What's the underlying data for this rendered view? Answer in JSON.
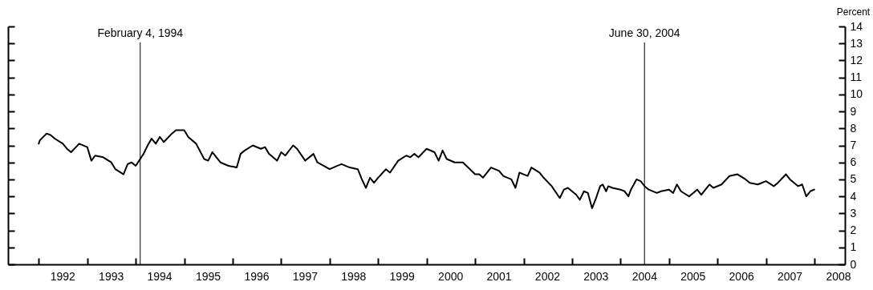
{
  "chart_data": {
    "type": "line",
    "ylabel": "Percent",
    "x": [
      "1992-01-01",
      "1992-01-10",
      "1992-03",
      "1992-04",
      "1992-05",
      "1992-07",
      "1992-08",
      "1992-09",
      "1992-11",
      "1993-01",
      "1993-02",
      "1993-03",
      "1993-05",
      "1993-07",
      "1993-08",
      "1993-10",
      "1993-11",
      "1993-12",
      "1994-01",
      "1994-03",
      "1994-04",
      "1994-05",
      "1994-06",
      "1994-07",
      "1994-08",
      "1994-10",
      "1994-11",
      "1995-01",
      "1995-02",
      "1995-04",
      "1995-06",
      "1995-07",
      "1995-08",
      "1995-09",
      "1995-10",
      "1995-12",
      "1996-02",
      "1996-03",
      "1996-04",
      "1996-06",
      "1996-08",
      "1996-09",
      "1996-10",
      "1996-12",
      "1997-01",
      "1997-02",
      "1997-04",
      "1997-05",
      "1997-07",
      "1997-09",
      "1997-10",
      "1998-01",
      "1998-03",
      "1998-04",
      "1998-06",
      "1998-08",
      "1998-09",
      "1998-10",
      "1998-11",
      "1998-12",
      "1999-01",
      "1999-03",
      "1999-04",
      "1999-06",
      "1999-08",
      "1999-09",
      "1999-10",
      "1999-11",
      "2000-01",
      "2000-03",
      "2000-04",
      "2000-05",
      "2000-06",
      "2000-08",
      "2000-10",
      "2001-01",
      "2001-02",
      "2001-03",
      "2001-05",
      "2001-07",
      "2001-08",
      "2001-10",
      "2001-11",
      "2001-12",
      "2002-01",
      "2002-02",
      "2002-03",
      "2002-05",
      "2002-06",
      "2002-08",
      "2002-10",
      "2002-11",
      "2002-12",
      "2003-01",
      "2003-02",
      "2003-03",
      "2003-04",
      "2003-05",
      "2003-06",
      "2003-07",
      "2003-08-01",
      "2003-08-20",
      "2003-09-15",
      "2003-10",
      "2003-11",
      "2004-01",
      "2004-02",
      "2004-03",
      "2004-03-20",
      "2004-05",
      "2004-06",
      "2004-07",
      "2004-08",
      "2004-10",
      "2004-11",
      "2005-01",
      "2005-02",
      "2005-03",
      "2005-04",
      "2005-06",
      "2005-08",
      "2005-09",
      "2005-11",
      "2005-12",
      "2006-02",
      "2006-04",
      "2006-06",
      "2006-08",
      "2006-09",
      "2006-11",
      "2007-01",
      "2007-03",
      "2007-04",
      "2007-06",
      "2007-07",
      "2007-09",
      "2007-10",
      "2007-11",
      "2007-12",
      "2007-12-31"
    ],
    "series": [
      {
        "color": "#000000",
        "values": [
          7.1,
          7.3,
          7.7,
          7.6,
          7.4,
          7.1,
          6.8,
          6.6,
          7.1,
          6.9,
          6.1,
          6.4,
          6.3,
          6.0,
          5.6,
          5.3,
          5.9,
          6.0,
          5.8,
          6.5,
          7.0,
          7.4,
          7.1,
          7.5,
          7.2,
          7.7,
          7.9,
          7.9,
          7.5,
          7.1,
          6.2,
          6.1,
          6.6,
          6.3,
          6.0,
          5.8,
          5.7,
          6.5,
          6.7,
          7.0,
          6.8,
          6.9,
          6.5,
          6.1,
          6.6,
          6.4,
          7.0,
          6.8,
          6.1,
          6.5,
          6.0,
          5.6,
          5.8,
          5.9,
          5.7,
          5.6,
          5.0,
          4.5,
          5.1,
          4.8,
          5.1,
          5.6,
          5.4,
          6.1,
          6.4,
          6.3,
          6.5,
          6.3,
          6.8,
          6.6,
          6.1,
          6.7,
          6.2,
          6.0,
          6.0,
          5.3,
          5.3,
          5.1,
          5.7,
          5.5,
          5.2,
          5.0,
          4.5,
          5.4,
          5.3,
          5.2,
          5.7,
          5.4,
          5.1,
          4.6,
          3.9,
          4.4,
          4.5,
          4.3,
          4.1,
          3.8,
          4.3,
          4.2,
          3.3,
          3.9,
          4.6,
          4.7,
          4.3,
          4.6,
          4.5,
          4.4,
          4.3,
          4.0,
          4.4,
          5.0,
          4.9,
          4.6,
          4.4,
          4.2,
          4.3,
          4.4,
          4.2,
          4.7,
          4.3,
          4.0,
          4.4,
          4.1,
          4.7,
          4.5,
          4.7,
          5.2,
          5.3,
          5.0,
          4.8,
          4.7,
          4.9,
          4.6,
          4.8,
          5.3,
          5.0,
          4.6,
          4.7,
          4.0,
          4.3,
          4.4
        ]
      }
    ],
    "xlim": [
      "1991-05-15",
      "2008-08-18"
    ],
    "xticks": [
      {
        "value": "1992-01-01",
        "label": null
      },
      {
        "value": "1993-01-01",
        "label": null
      },
      {
        "value": "1994-01-01",
        "label": null
      },
      {
        "value": "1995-01-01",
        "label": null
      },
      {
        "value": "1996-01-01",
        "label": null
      },
      {
        "value": "1997-01-01",
        "label": null
      },
      {
        "value": "1998-01-01",
        "label": null
      },
      {
        "value": "1999-01-01",
        "label": null
      },
      {
        "value": "2000-01-01",
        "label": null
      },
      {
        "value": "2001-01-01",
        "label": null
      },
      {
        "value": "2002-01-01",
        "label": null
      },
      {
        "value": "2003-01-01",
        "label": null
      },
      {
        "value": "2004-01-01",
        "label": null
      },
      {
        "value": "2005-01-01",
        "label": null
      },
      {
        "value": "2006-01-01",
        "label": null
      },
      {
        "value": "2007-01-01",
        "label": null
      },
      {
        "value": "2008-01-01",
        "label": null
      },
      {
        "value": "1992-07-01",
        "label": "1992"
      },
      {
        "value": "1993-07-01",
        "label": "1993"
      },
      {
        "value": "1994-07-01",
        "label": "1994"
      },
      {
        "value": "1995-07-01",
        "label": "1995"
      },
      {
        "value": "1996-07-01",
        "label": "1996"
      },
      {
        "value": "1997-07-01",
        "label": "1997"
      },
      {
        "value": "1998-07-01",
        "label": "1998"
      },
      {
        "value": "1999-07-01",
        "label": "1999"
      },
      {
        "value": "2000-07-01",
        "label": "2000"
      },
      {
        "value": "2001-07-01",
        "label": "2001"
      },
      {
        "value": "2002-07-01",
        "label": "2002"
      },
      {
        "value": "2003-07-01",
        "label": "2003"
      },
      {
        "value": "2004-07-01",
        "label": "2004"
      },
      {
        "value": "2005-07-01",
        "label": "2005"
      },
      {
        "value": "2006-07-01",
        "label": "2006"
      },
      {
        "value": "2007-07-01",
        "label": "2007"
      },
      {
        "value": "2008-07-01",
        "label": "2008"
      }
    ],
    "ylim": [
      0,
      14
    ],
    "yticks": [
      0,
      1,
      2,
      3,
      4,
      5,
      6,
      7,
      8,
      9,
      10,
      11,
      12,
      13,
      14
    ],
    "ref_lines": [
      {
        "axis": "x",
        "value": "1994-02-04",
        "label": "February 4, 1994",
        "color": "#000000"
      },
      {
        "axis": "x",
        "value": "2004-06-30",
        "label": "June 30, 2004",
        "color": "#000000"
      }
    ],
    "grid": false
  }
}
